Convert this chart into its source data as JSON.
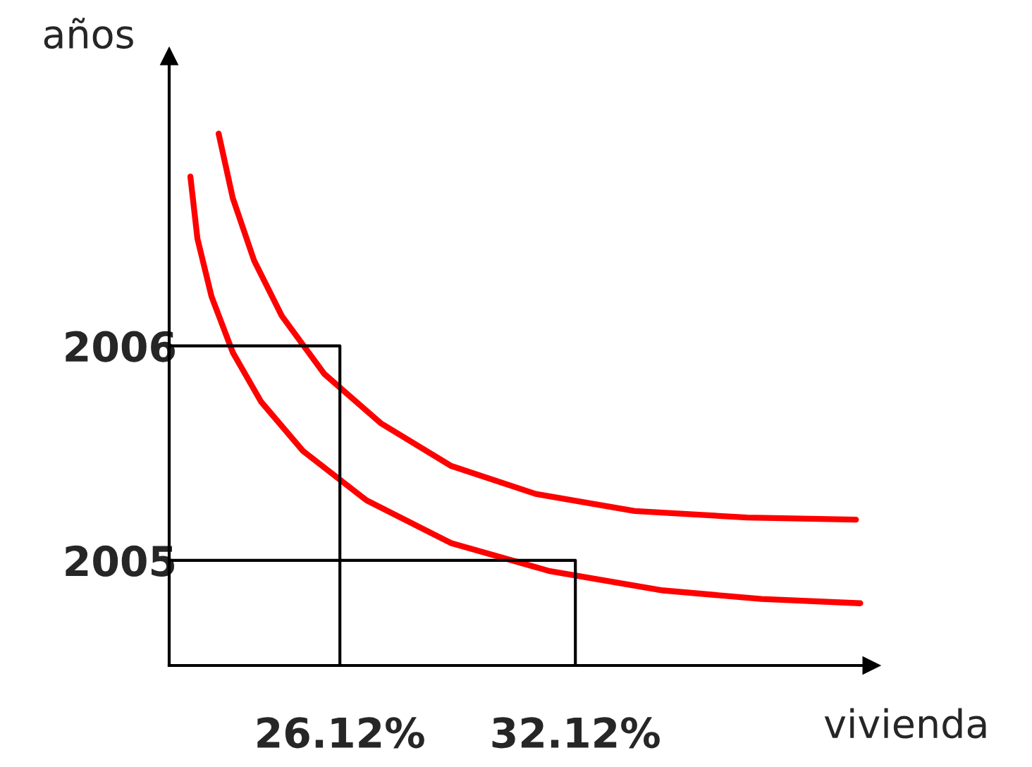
{
  "chart_data": {
    "type": "line",
    "xlabel": "vivienda",
    "ylabel": "años",
    "xlim": [
      21.77,
      39.66
    ],
    "ylim": [
      2004.51,
      2007.35
    ],
    "xticks": [
      {
        "value": 26.12,
        "label": "26.12%"
      },
      {
        "value": 32.12,
        "label": "32.12%"
      }
    ],
    "yticks": [
      2005,
      2006
    ],
    "grid": false,
    "legend": false,
    "marker": "none",
    "line_style": "solid",
    "series": [
      {
        "color": "#ff0000",
        "x": [
          23.03,
          23.39,
          23.93,
          24.64,
          25.72,
          27.16,
          28.96,
          31.11,
          33.63,
          36.5,
          39.27
        ],
        "values": [
          2006.99,
          2006.69,
          2006.4,
          2006.14,
          2005.87,
          2005.64,
          2005.44,
          2005.31,
          2005.23,
          2005.2,
          2005.19
        ]
      },
      {
        "color": "#ff0000",
        "x": [
          22.31,
          22.49,
          22.85,
          23.39,
          24.11,
          25.18,
          26.8,
          28.96,
          31.47,
          34.35,
          36.86,
          39.38
        ],
        "values": [
          2006.79,
          2006.5,
          2006.23,
          2005.97,
          2005.74,
          2005.51,
          2005.28,
          2005.08,
          2004.95,
          2004.86,
          2004.82,
          2004.8
        ]
      },
      {
        "color": "#000000",
        "x": [
          21.77,
          26.12,
          26.12
        ],
        "values": [
          2006,
          2006,
          2004.51
        ]
      },
      {
        "color": "#000000",
        "x": [
          21.77,
          32.12,
          32.12
        ],
        "values": [
          2005,
          2005,
          2004.51
        ]
      }
    ]
  }
}
